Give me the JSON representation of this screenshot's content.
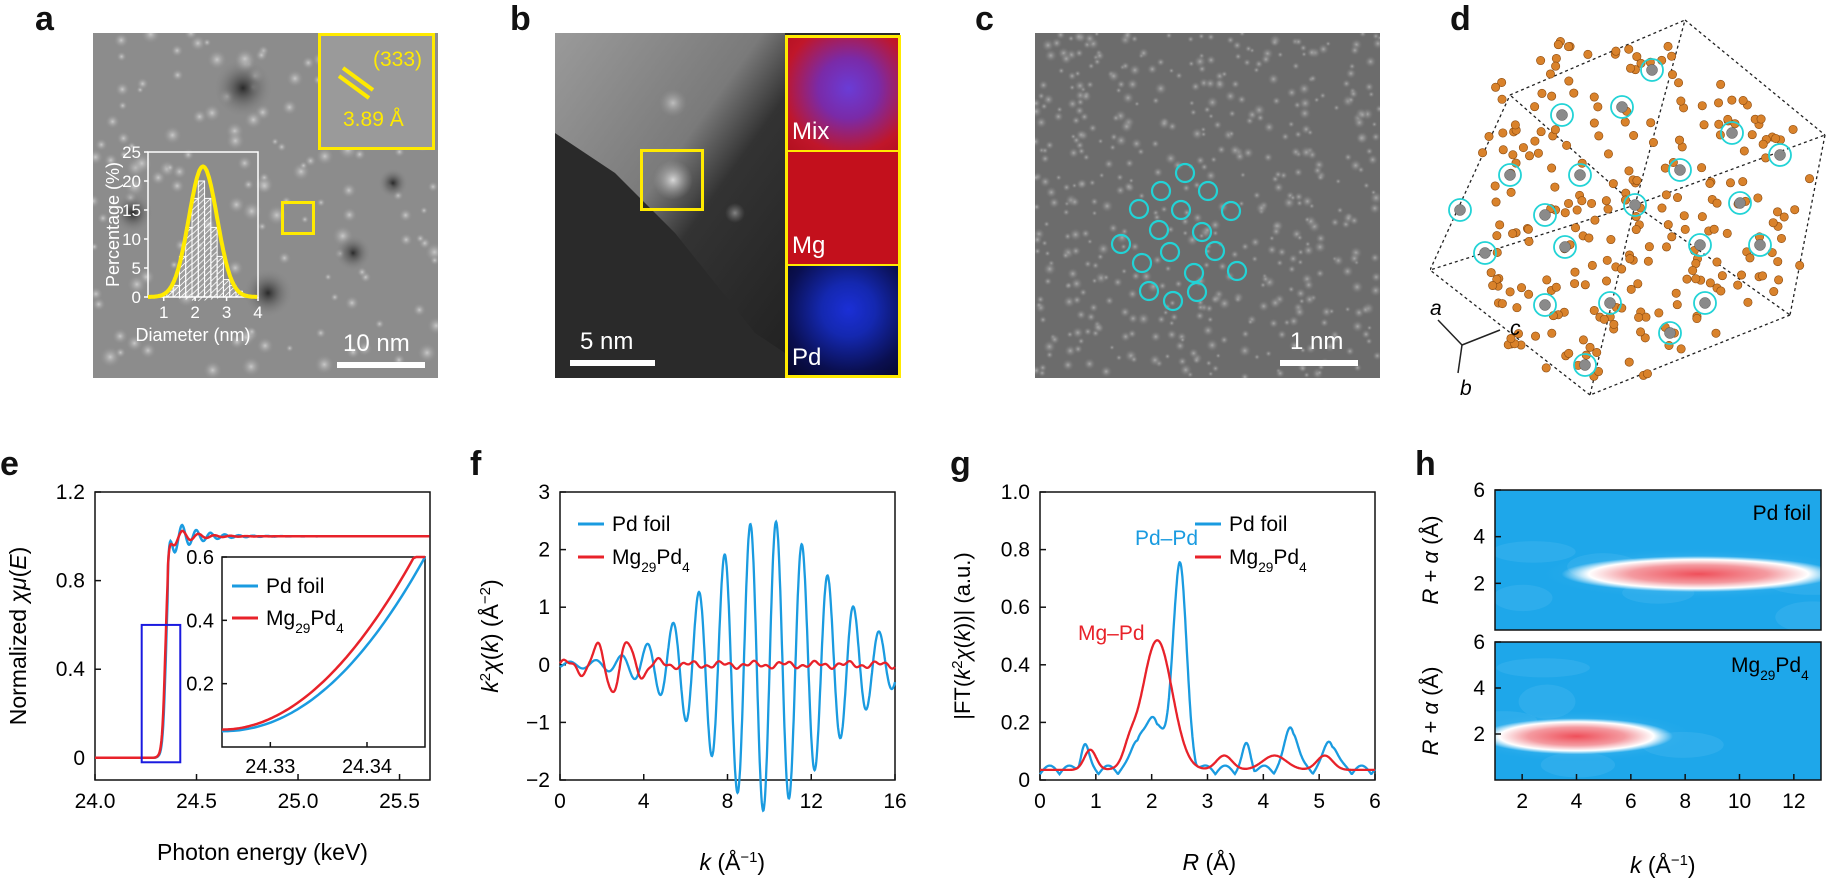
{
  "panels": {
    "a": {
      "label": "a",
      "scale": "10 nm",
      "inset_label": "(333)",
      "inset_spacing": "3.89 Å",
      "hist": {
        "ylabel": "Percentage (%)",
        "xlabel": "Diameter (nm)",
        "yticks": [
          "0",
          "5",
          "10",
          "15",
          "20",
          "25"
        ],
        "xticks": [
          "1",
          "2",
          "3",
          "4"
        ]
      }
    },
    "b": {
      "label": "b",
      "scale": "5 nm",
      "maps": [
        "Mix",
        "Mg",
        "Pd"
      ]
    },
    "c": {
      "label": "c",
      "scale": "1 nm"
    },
    "d": {
      "label": "d",
      "axes": {
        "a": "a",
        "b": "b",
        "c": "c"
      }
    },
    "e": {
      "label": "e"
    },
    "f": {
      "label": "f"
    },
    "g": {
      "label": "g"
    },
    "h": {
      "label": "h",
      "top_label": "Pd foil",
      "bottom_label": "Mg29Pd4"
    }
  },
  "colors": {
    "blue": "#1a9be0",
    "red": "#e8222a",
    "yellow": "#ffea00",
    "cyan": "#22d3d6",
    "orange": "#d9822b",
    "gray": "#8a8a8a"
  },
  "chart_data": [
    {
      "id": "a-hist",
      "type": "bar",
      "title": "",
      "xlabel": "Diameter (nm)",
      "ylabel": "Percentage (%)",
      "xlim": [
        0.5,
        4
      ],
      "ylim": [
        0,
        25
      ],
      "categories": [
        1.2,
        1.4,
        1.6,
        1.8,
        2.0,
        2.2,
        2.4,
        2.6,
        2.8,
        3.0,
        3.2,
        3.4
      ],
      "values": [
        1,
        2,
        7,
        12,
        17,
        20,
        17,
        12,
        7,
        3,
        2,
        1
      ],
      "fit": {
        "mean": 2.25,
        "sigma": 0.45,
        "peak": 22.5
      }
    },
    {
      "id": "e",
      "type": "line",
      "xlabel": "Photon energy (keV)",
      "ylabel": "Normalized χμ(E)",
      "xlim": [
        24.0,
        25.65
      ],
      "ylim": [
        -0.1,
        1.2
      ],
      "xticks": [
        "24.0",
        "24.5",
        "25.0",
        "25.5"
      ],
      "yticks": [
        "0",
        "0.4",
        "0.8",
        "1.2"
      ],
      "series": [
        {
          "name": "Pd foil",
          "color": "#1a9be0"
        },
        {
          "name": "Mg29Pd4",
          "color": "#e8222a"
        }
      ],
      "inset": {
        "xlim": [
          24.325,
          24.346
        ],
        "ylim": [
          0.0,
          0.6
        ],
        "xticks": [
          "24.33",
          "24.34"
        ],
        "yticks": [
          "0.2",
          "0.4",
          "0.6"
        ]
      }
    },
    {
      "id": "f",
      "type": "line",
      "xlabel": "k (Å−1)",
      "ylabel": "k2χ(k) (Å−2)",
      "xlim": [
        0,
        16
      ],
      "ylim": [
        -2,
        3
      ],
      "xticks": [
        "0",
        "4",
        "8",
        "12",
        "16"
      ],
      "yticks": [
        "−2",
        "−1",
        "0",
        "1",
        "2",
        "3"
      ],
      "series": [
        {
          "name": "Pd foil",
          "color": "#1a9be0"
        },
        {
          "name": "Mg29Pd4",
          "color": "#e8222a"
        }
      ]
    },
    {
      "id": "g",
      "type": "line",
      "xlabel": "R (Å)",
      "ylabel": "|FT(k2χ(k))| (a.u.)",
      "xlim": [
        0,
        6
      ],
      "ylim": [
        0,
        1.0
      ],
      "xticks": [
        "0",
        "1",
        "2",
        "3",
        "4",
        "5",
        "6"
      ],
      "yticks": [
        "0",
        "0.2",
        "0.4",
        "0.6",
        "0.8",
        "1.0"
      ],
      "annotations": [
        "Pd–Pd",
        "Mg–Pd"
      ],
      "series": [
        {
          "name": "Pd foil",
          "color": "#1a9be0",
          "peak_x": 2.5,
          "peak_y": 0.77
        },
        {
          "name": "Mg29Pd4",
          "color": "#e8222a",
          "peak_x": 2.1,
          "peak_y": 0.47
        }
      ]
    },
    {
      "id": "h",
      "type": "heatmap",
      "xlabel": "k (Å−1)",
      "ylabel": "R + α (Å)",
      "xlim": [
        1,
        13
      ],
      "ylim": [
        0,
        6
      ],
      "xticks": [
        "2",
        "4",
        "6",
        "8",
        "10",
        "12"
      ],
      "yticks": [
        "2",
        "4",
        "6"
      ],
      "maps": [
        {
          "name": "Pd foil",
          "hot_k": [
            4,
            13
          ],
          "hot_R": 2.4
        },
        {
          "name": "Mg29Pd4",
          "hot_k": [
            1,
            7
          ],
          "hot_R": 1.9
        }
      ]
    }
  ]
}
